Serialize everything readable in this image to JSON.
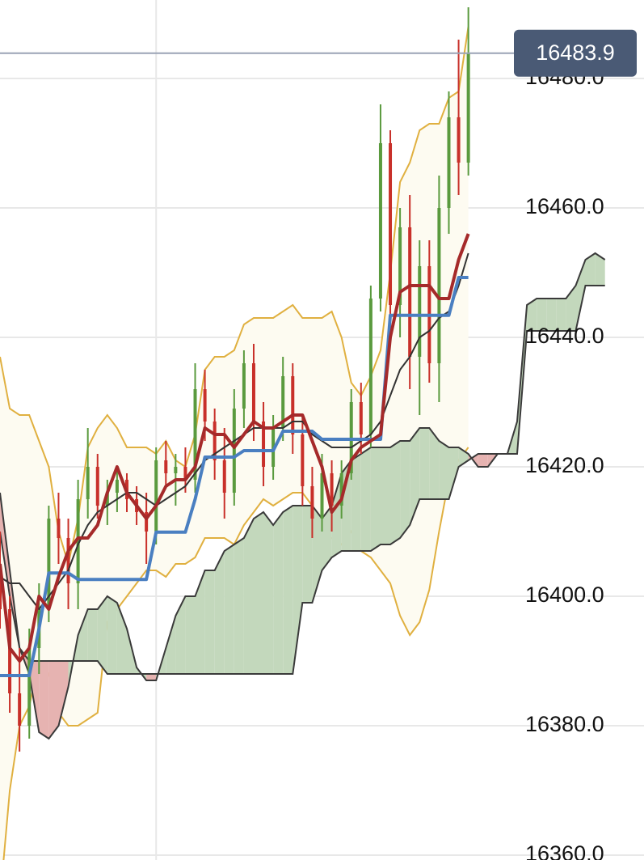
{
  "chart_data": {
    "type": "candlestick",
    "xlim": [
      0,
      66
    ],
    "ylim": [
      16359.25,
      16492.125
    ],
    "xticks": [
      16
    ],
    "yticks": [
      {
        "value": 16360,
        "label": "16360.0"
      },
      {
        "value": 16380,
        "label": "16380.0"
      },
      {
        "value": 16400,
        "label": "16400.0"
      },
      {
        "value": 16420,
        "label": "16420.0"
      },
      {
        "value": 16440,
        "label": "16440.0"
      },
      {
        "value": 16460,
        "label": "16460.0"
      },
      {
        "value": 16480,
        "label": "16480.0"
      }
    ],
    "grid": true,
    "up_color": "#5a9a3e",
    "down_color": "#c8302a",
    "last_price": 16483.9,
    "last_price_color": "#4a5a75",
    "x": [
      0,
      1,
      2,
      3,
      4,
      5,
      6,
      7,
      8,
      9,
      10,
      11,
      12,
      13,
      14,
      15,
      16,
      17,
      18,
      19,
      20,
      21,
      22,
      23,
      24,
      25,
      26,
      27,
      28,
      29,
      30,
      31,
      32,
      33,
      34,
      35,
      36,
      37,
      38,
      39,
      40,
      41,
      42,
      43,
      44,
      45,
      46,
      47,
      48
    ],
    "open": [
      16405,
      16398,
      16385,
      16380,
      16392,
      16398,
      16412,
      16409,
      16402,
      16415,
      16420,
      16414,
      16416,
      16418,
      16415,
      16413,
      16410,
      16421,
      16419,
      16420,
      16418,
      16432,
      16427,
      16421,
      16416,
      16429,
      16436,
      16427,
      16420,
      16426,
      16434,
      16425,
      16417,
      16412,
      16419,
      16414,
      16419,
      16430,
      16425,
      16446,
      16470,
      16445,
      16457,
      16437,
      16451,
      16436,
      16460,
      16474,
      16467
    ],
    "high": [
      16410,
      16400,
      16392,
      16395,
      16402,
      16414,
      16416,
      16412,
      16418,
      16426,
      16422,
      16418,
      16420,
      16419,
      16417,
      16416,
      16423,
      16424,
      16422,
      16423,
      16436,
      16435,
      16429,
      16426,
      16432,
      16438,
      16439,
      16430,
      16428,
      16437,
      16436,
      16428,
      16420,
      16422,
      16421,
      16421,
      16432,
      16433,
      16448,
      16476,
      16472,
      16460,
      16462,
      16455,
      16455,
      16465,
      16478,
      16486,
      16491
    ],
    "low": [
      16395,
      16382,
      16376,
      16378,
      16388,
      16396,
      16405,
      16398,
      16398,
      16412,
      16412,
      16411,
      16413,
      16413,
      16411,
      16405,
      16408,
      16417,
      16414,
      16416,
      16416,
      16424,
      16418,
      16412,
      16414,
      16426,
      16424,
      16417,
      16418,
      16424,
      16422,
      16414,
      16409,
      16410,
      16410,
      16412,
      16418,
      16422,
      16423,
      16444,
      16440,
      16440,
      16432,
      16428,
      16433,
      16430,
      16456,
      16462,
      16465
    ],
    "close": [
      16398,
      16385,
      16380,
      16392,
      16398,
      16412,
      16409,
      16402,
      16415,
      16420,
      16414,
      16416,
      16418,
      16415,
      16413,
      16410,
      16421,
      16419,
      16420,
      16418,
      16432,
      16427,
      16421,
      16416,
      16429,
      16436,
      16427,
      16420,
      16426,
      16434,
      16425,
      16417,
      16412,
      16419,
      16414,
      16419,
      16430,
      16425,
      16446,
      16470,
      16445,
      16457,
      16437,
      16451,
      16436,
      16460,
      16474,
      16467,
      16483.9
    ],
    "bands": {
      "color": "#e0b040",
      "fill": "#fdfbf1",
      "upper": [
        16437,
        16429,
        16428,
        16428,
        16424,
        16420,
        16410,
        16405,
        16412,
        16423,
        16426,
        16428,
        16426,
        16423,
        16423,
        16423,
        16422,
        16424,
        16421,
        16420,
        16425,
        16435,
        16437,
        16437,
        16438,
        16442,
        16443,
        16443,
        16443,
        16444,
        16445,
        16443,
        16443,
        16443,
        16444,
        16440,
        16433,
        16431,
        16434,
        16438,
        16450,
        16464,
        16467,
        16472,
        16473,
        16473,
        16477,
        16478,
        16488
      ],
      "lower": [
        16353,
        16370,
        16380,
        16383,
        16390,
        16388,
        16382,
        16380,
        16380,
        16381,
        16382,
        16396,
        16398,
        16400,
        16402,
        16404,
        16404,
        16403,
        16405,
        16405,
        16406,
        16409,
        16409,
        16409,
        16408,
        16411,
        16413,
        16415,
        16414,
        16415,
        16416,
        16416,
        16414,
        16409,
        16409,
        16408,
        16410,
        16407,
        16406,
        16404,
        16402,
        16397,
        16394,
        16396,
        16401,
        16410,
        16418,
        16421,
        16423
      ]
    },
    "cloud": {
      "up_color": "#c3d8bc",
      "down_color": "#e6b3b1",
      "line_color": "#3a3a3a",
      "x": [
        0,
        1,
        2,
        3,
        4,
        5,
        6,
        7,
        8,
        9,
        10,
        11,
        12,
        13,
        14,
        15,
        16,
        17,
        18,
        19,
        20,
        21,
        22,
        23,
        24,
        25,
        26,
        27,
        28,
        29,
        30,
        31,
        32,
        33,
        34,
        35,
        36,
        37,
        38,
        39,
        40,
        41,
        42,
        43,
        44,
        45,
        46,
        47,
        48,
        49,
        50,
        51,
        52,
        53,
        54,
        55,
        56,
        57,
        58,
        59,
        60,
        61,
        62
      ],
      "span_a": [
        16410,
        16400,
        16392,
        16388,
        16379,
        16378,
        16380,
        16386,
        16394,
        16398,
        16398,
        16400,
        16399,
        16395,
        16389,
        16387,
        16387,
        16392,
        16397,
        16400,
        16400,
        16404,
        16404,
        16407,
        16408,
        16409,
        16412,
        16413,
        16411,
        16413,
        16414,
        16414,
        16414,
        16412,
        16414,
        16419,
        16421,
        16422,
        16423,
        16423,
        16423,
        16424,
        16424,
        16426,
        16426,
        16424,
        16423,
        16423,
        16422,
        16420,
        16420,
        16422,
        16422,
        16427,
        16445,
        16446,
        16446,
        16446,
        16446,
        16448,
        16452,
        16453,
        16452
      ],
      "span_b": [
        16416,
        16404,
        16392,
        16390,
        16390,
        16390,
        16390,
        16390,
        16390,
        16390,
        16390,
        16388,
        16388,
        16388,
        16388,
        16388,
        16388,
        16388,
        16388,
        16388,
        16388,
        16388,
        16388,
        16388,
        16388,
        16388,
        16388,
        16388,
        16388,
        16388,
        16388,
        16399,
        16399,
        16404,
        16406,
        16407,
        16407,
        16407,
        16407,
        16408,
        16408,
        16409,
        16411,
        16415,
        16415,
        16415,
        16415,
        16420,
        16421,
        16422,
        16422,
        16422,
        16422,
        16422,
        16441,
        16441,
        16441,
        16441,
        16441,
        16441,
        16448,
        16448,
        16448
      ]
    },
    "lines": [
      {
        "color": "#333333",
        "values": [
          16403,
          16402,
          16402,
          16400,
          16398,
          16400,
          16402,
          16404,
          16408,
          16411,
          16413,
          16414,
          16415,
          16416,
          16416,
          16415,
          16414,
          16415,
          16416,
          16417,
          16419,
          16421,
          16422,
          16423,
          16424,
          16425,
          16426,
          16426,
          16426,
          16426,
          16427,
          16427,
          16425,
          16424,
          16423,
          16423,
          16423,
          16424,
          16425,
          16427,
          16431,
          16435,
          16437,
          16440,
          16441,
          16443,
          16444,
          16448,
          16453
        ]
      },
      {
        "color": "#4a7fc1",
        "values": [
          16387.75,
          16387.75,
          16387.75,
          16387.75,
          16395,
          16403.6,
          16403.6,
          16403.6,
          16402.6,
          16402.6,
          16402.6,
          16402.6,
          16402.6,
          16402.6,
          16402.6,
          16402.6,
          16409.9,
          16409.9,
          16409.9,
          16409.9,
          16415,
          16421.5,
          16421.5,
          16421.5,
          16421.5,
          16422.5,
          16422.5,
          16422.5,
          16422.5,
          16425.5,
          16425.5,
          16425.5,
          16425.5,
          16424.25,
          16424.25,
          16424.25,
          16424.25,
          16424.25,
          16424.25,
          16424.25,
          16443.4,
          16443.4,
          16443.4,
          16443.4,
          16443.4,
          16443.4,
          16443.4,
          16449.25,
          16449.25
        ]
      },
      {
        "color": "#a52a2a",
        "values": [
          16405,
          16392,
          16390,
          16392,
          16400,
          16398,
          16403,
          16407,
          16409,
          16409,
          16411,
          16416,
          16420,
          16416,
          16414,
          16412,
          16414,
          16417,
          16418,
          16418,
          16420,
          16426,
          16425,
          16425,
          16423,
          16425,
          16427,
          16426,
          16426,
          16427,
          16428,
          16428,
          16424,
          16420,
          16413,
          16415,
          16421,
          16423,
          16424,
          16425,
          16440,
          16447,
          16448,
          16448,
          16448,
          16446,
          16446,
          16452,
          16456
        ]
      }
    ]
  }
}
